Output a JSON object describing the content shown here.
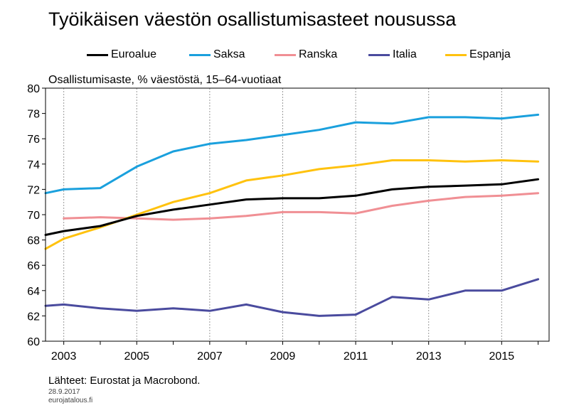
{
  "chart_data": {
    "type": "line",
    "title": "Työikäisen väestön osallistumisasteet nousussa",
    "ylabel": "Osallistumisaste, % väestöstä, 15–64-vuotiaat",
    "xlabel": "",
    "ylim": [
      60,
      80
    ],
    "xlim": [
      2002.5,
      2016.3
    ],
    "yticks": [
      60,
      62,
      64,
      66,
      68,
      70,
      72,
      74,
      76,
      78,
      80
    ],
    "xticks": [
      2003,
      2005,
      2007,
      2009,
      2011,
      2013,
      2015
    ],
    "xtick_labels": [
      "2003",
      "2005",
      "2007",
      "2009",
      "2011",
      "2013",
      "2015"
    ],
    "grid": "vertical",
    "legend_position": "top",
    "series": [
      {
        "name": "Euroalue",
        "color": "#000000",
        "x": [
          2002.5,
          2003,
          2004,
          2005,
          2006,
          2007,
          2008,
          2009,
          2010,
          2011,
          2012,
          2013,
          2014,
          2015,
          2016
        ],
        "y": [
          68.4,
          68.7,
          69.1,
          69.9,
          70.4,
          70.8,
          71.2,
          71.3,
          71.3,
          71.5,
          72.0,
          72.2,
          72.3,
          72.4,
          72.8
        ]
      },
      {
        "name": "Saksa",
        "color": "#1aa0dd",
        "x": [
          2002.5,
          2003,
          2004,
          2005,
          2006,
          2007,
          2008,
          2009,
          2010,
          2011,
          2012,
          2013,
          2014,
          2015,
          2016
        ],
        "y": [
          71.7,
          72.0,
          72.1,
          73.8,
          75.0,
          75.6,
          75.9,
          76.3,
          76.7,
          77.3,
          77.2,
          77.7,
          77.7,
          77.6,
          77.9
        ]
      },
      {
        "name": "Ranska",
        "color": "#f08f94",
        "x": [
          2003,
          2004,
          2005,
          2006,
          2007,
          2008,
          2009,
          2010,
          2011,
          2012,
          2013,
          2014,
          2015,
          2016
        ],
        "y": [
          69.7,
          69.8,
          69.7,
          69.6,
          69.7,
          69.9,
          70.2,
          70.2,
          70.1,
          70.7,
          71.1,
          71.4,
          71.5,
          71.7
        ]
      },
      {
        "name": "Italia",
        "color": "#4a4b9e",
        "x": [
          2002.5,
          2003,
          2004,
          2005,
          2006,
          2007,
          2008,
          2009,
          2010,
          2011,
          2012,
          2013,
          2014,
          2015,
          2016
        ],
        "y": [
          62.8,
          62.9,
          62.6,
          62.4,
          62.6,
          62.4,
          62.9,
          62.3,
          62.0,
          62.1,
          63.5,
          63.3,
          64.0,
          64.0,
          64.9
        ]
      },
      {
        "name": "Espanja",
        "color": "#ffc20e",
        "x": [
          2002.5,
          2003,
          2004,
          2005,
          2006,
          2007,
          2008,
          2009,
          2010,
          2011,
          2012,
          2013,
          2014,
          2015,
          2016
        ],
        "y": [
          67.3,
          68.1,
          69.0,
          70.0,
          71.0,
          71.7,
          72.7,
          73.1,
          73.6,
          73.9,
          74.3,
          74.3,
          74.2,
          74.3,
          74.2
        ]
      }
    ]
  },
  "footer": {
    "source": "Lähteet: Eurostat ja Macrobond.",
    "date": "28.9.2017",
    "site": "eurojatalous.fi"
  }
}
